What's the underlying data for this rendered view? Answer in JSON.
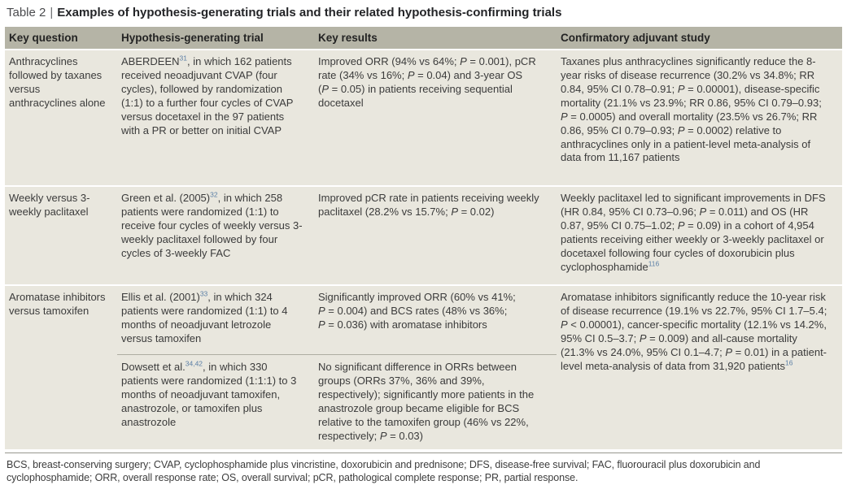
{
  "colors": {
    "header_bg": "#b5b4a6",
    "row_bg": "#e9e7de",
    "reference_blue": "#5b7fa6",
    "divider": "#aeada1",
    "text": "#3b3b3b"
  },
  "title": {
    "label": "Table 2",
    "separator": "|",
    "text": "Examples of hypothesis-generating trials and their related hypothesis-confirming trials"
  },
  "table": {
    "columns": [
      "Key question",
      "Hypothesis-generating trial",
      "Key results",
      "Confirmatory adjuvant study"
    ],
    "rows": [
      {
        "key_question": "Anthracyclines followed by taxanes versus anthracyclines alone",
        "trials": [
          {
            "hypothesis_generating_trial": "ABERDEEN^{31}, in which 162 patients received neoadjuvant CVAP (four cycles), followed by randomization (1:1) to a further four cycles of CVAP versus docetaxel in the 97 patients with a PR or better on initial CVAP",
            "key_results": "Improved ORR (94% vs 64%; *P* = 0.001), pCR rate (34% vs 16%; *P* = 0.04) and 3-year OS (*P* = 0.05) in patients receiving sequential docetaxel"
          }
        ],
        "confirmatory_adjuvant_study": "Taxanes plus anthracyclines significantly reduce the 8-year risks of disease recurrence (30.2% vs 34.8%; RR 0.84, 95% CI 0.78–0.91; *P* = 0.00001), disease-specific mortality (21.1% vs 23.9%; RR 0.86, 95% CI 0.79–0.93; *P* = 0.0005) and overall mortality (23.5% vs 26.7%; RR 0.86, 95% CI 0.79–0.93; *P* = 0.0002) relative to anthracyclines only in a patient-level meta-analysis of data from 11,167 patients"
      },
      {
        "key_question": "Weekly versus 3-weekly paclitaxel",
        "trials": [
          {
            "hypothesis_generating_trial": "Green et al. (2005)^{32}, in which 258 patients were randomized (1:1) to receive four cycles of weekly versus 3-weekly paclitaxel followed by four cycles of 3-weekly FAC",
            "key_results": "Improved pCR rate in patients receiving weekly paclitaxel (28.2% vs 15.7%; *P* = 0.02)"
          }
        ],
        "confirmatory_adjuvant_study": "Weekly paclitaxel led to significant improvements in DFS (HR 0.84, 95% CI 0.73–0.96; *P* = 0.011) and OS (HR 0.87, 95% CI 0.75–1.02; *P* = 0.09) in a cohort of 4,954 patients receiving either weekly or 3-weekly paclitaxel or docetaxel following four cycles of doxorubicin plus cyclophosphamide^{116}"
      },
      {
        "key_question": "Aromatase inhibitors versus tamoxifen",
        "trials": [
          {
            "hypothesis_generating_trial": "Ellis et al. (2001)^{33}, in which 324 patients were randomized (1:1) to 4 months of neoadjuvant letrozole versus tamoxifen",
            "key_results": "Significantly improved ORR (60% vs 41%; *P* = 0.004) and BCS rates (48% vs 36%; *P* = 0.036) with aromatase inhibitors"
          },
          {
            "hypothesis_generating_trial": "Dowsett et al.^{34,42}, in which 330 patients were randomized (1:1:1) to 3 months of neoadjuvant tamoxifen, anastrozole, or tamoxifen plus anastrozole",
            "key_results": "No significant difference in ORRs between groups (ORRs 37%, 36% and 39%, respectively); significantly more patients in the anastrozole group became eligible for BCS relative to the tamoxifen group (46% vs 22%, respectively; *P* = 0.03)"
          }
        ],
        "confirmatory_adjuvant_study": "Aromatase inhibitors significantly reduce the 10-year risk of disease recurrence (19.1% vs 22.7%, 95% CI 1.7–5.4; *P* < 0.00001), cancer-specific mortality (12.1% vs 14.2%, 95% CI 0.5–3.7; *P* = 0.009) and all-cause mortality (21.3% vs 24.0%, 95% CI 0.1–4.7; *P* = 0.01) in a patient-level meta-analysis of data from 31,920 patients^{16}"
      }
    ]
  },
  "footnote": "BCS, breast-conserving surgery; CVAP, cyclophosphamide plus vincristine, doxorubicin and prednisone; DFS, disease-free survival; FAC, fluorouracil plus doxorubicin and cyclophosphamide; ORR, overall response rate; OS, overall survival; pCR, pathological complete response; PR, partial response."
}
